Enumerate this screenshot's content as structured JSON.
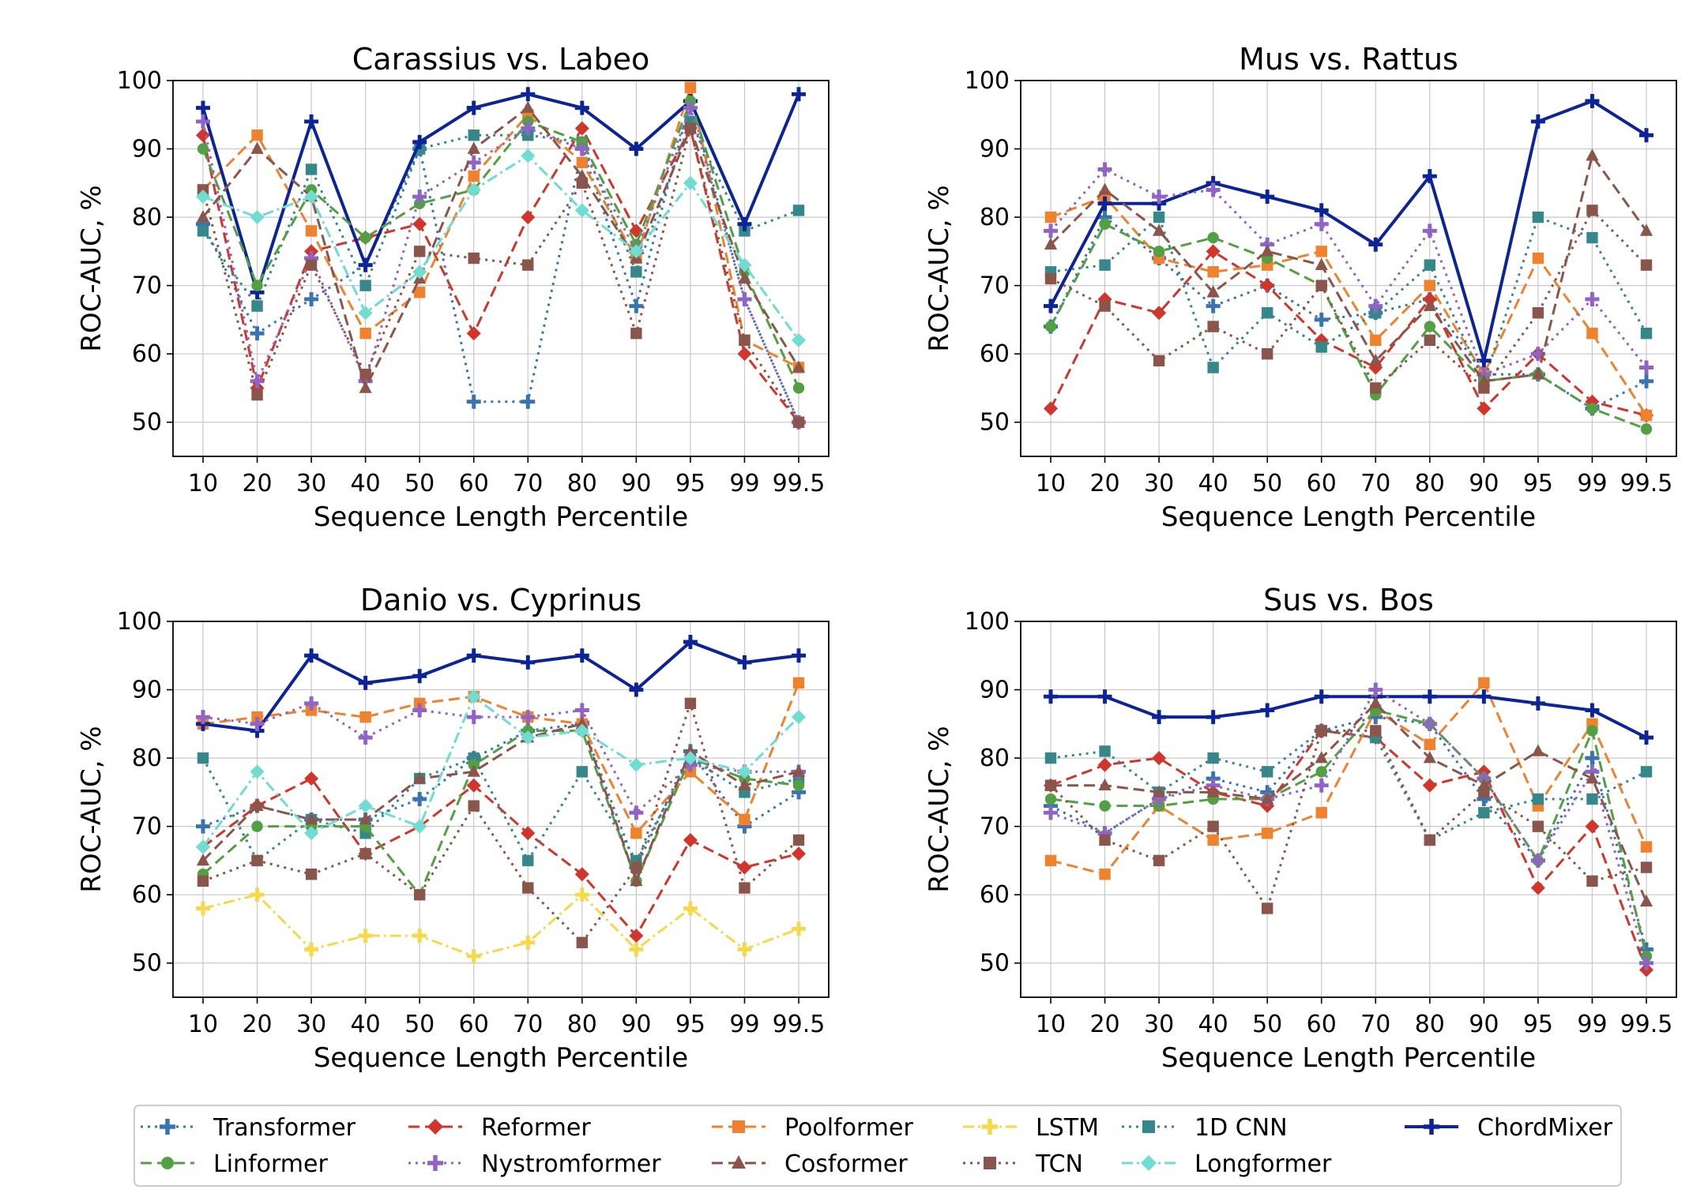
{
  "figure": {
    "legend": [
      {
        "key": "transformer",
        "label": "Transformer"
      },
      {
        "key": "reformer",
        "label": "Reformer"
      },
      {
        "key": "poolformer",
        "label": "Poolformer"
      },
      {
        "key": "lstm",
        "label": "LSTM"
      },
      {
        "key": "cnn",
        "label": "1D CNN"
      },
      {
        "key": "chordmixer",
        "label": "ChordMixer"
      },
      {
        "key": "linformer",
        "label": "Linformer"
      },
      {
        "key": "nystromformer",
        "label": "Nystromformer"
      },
      {
        "key": "cosformer",
        "label": "Cosformer"
      },
      {
        "key": "tcn",
        "label": "TCN"
      },
      {
        "key": "longformer",
        "label": "Longformer"
      }
    ],
    "styles": {
      "transformer": {
        "color": "#3a74b0",
        "dash": "dotted",
        "marker": "plus"
      },
      "reformer": {
        "color": "#d1352b",
        "dash": "dashed",
        "marker": "diamond"
      },
      "poolformer": {
        "color": "#f0822d",
        "dash": "dashed",
        "marker": "square"
      },
      "lstm": {
        "color": "#f5d94a",
        "dash": "dashdot",
        "marker": "plus"
      },
      "cnn": {
        "color": "#358789",
        "dash": "dotted",
        "marker": "square"
      },
      "chordmixer": {
        "color": "#0c2497",
        "dash": "solid",
        "marker": "plus"
      },
      "linformer": {
        "color": "#52a043",
        "dash": "dashed",
        "marker": "circle"
      },
      "nystromformer": {
        "color": "#9063c6",
        "dash": "dotted",
        "marker": "plus"
      },
      "cosformer": {
        "color": "#8a564b",
        "dash": "dashed",
        "marker": "triangle"
      },
      "tcn": {
        "color": "#8a564b",
        "dash": "dotted",
        "marker": "square"
      },
      "longformer": {
        "color": "#6fddd2",
        "dash": "dashdot",
        "marker": "diamond"
      }
    }
  },
  "chart_data": [
    {
      "type": "line",
      "title": "Carassius vs. Labeo",
      "xlabel": "Sequence Length Percentile",
      "ylabel": "ROC-AUC, %",
      "categories": [
        "10",
        "20",
        "30",
        "40",
        "50",
        "60",
        "70",
        "80",
        "90",
        "95",
        "99",
        "99.5"
      ],
      "ylim": [
        45,
        100
      ],
      "yticks": [
        50,
        60,
        70,
        80,
        90,
        100
      ],
      "grid": true,
      "series": [
        {
          "key": "transformer",
          "values": [
            79,
            63,
            68,
            73,
            90,
            53,
            53,
            90,
            67,
            97,
            68,
            50
          ]
        },
        {
          "key": "reformer",
          "values": [
            92,
            55,
            75,
            77,
            79,
            63,
            80,
            93,
            78,
            93,
            60,
            50
          ]
        },
        {
          "key": "poolformer",
          "values": [
            84,
            92,
            78,
            63,
            69,
            86,
            95,
            88,
            74,
            99,
            62,
            58
          ]
        },
        {
          "key": "cnn",
          "values": [
            78,
            67,
            87,
            70,
            90,
            92,
            92,
            91,
            72,
            94,
            78,
            81
          ]
        },
        {
          "key": "chordmixer",
          "values": [
            96,
            69,
            94,
            73,
            91,
            96,
            98,
            96,
            90,
            97,
            79,
            98
          ]
        },
        {
          "key": "linformer",
          "values": [
            90,
            70,
            84,
            77,
            82,
            84,
            94,
            91,
            76,
            97,
            72,
            55
          ]
        },
        {
          "key": "nystromformer",
          "values": [
            94,
            56,
            74,
            56,
            83,
            88,
            93,
            90,
            75,
            96,
            68,
            50
          ]
        },
        {
          "key": "cosformer",
          "values": [
            80,
            90,
            83,
            55,
            71,
            90,
            96,
            86,
            74,
            93,
            71,
            58
          ]
        },
        {
          "key": "tcn",
          "values": [
            84,
            54,
            73,
            57,
            75,
            74,
            73,
            85,
            63,
            93,
            62,
            50
          ]
        },
        {
          "key": "longformer",
          "values": [
            83,
            80,
            83,
            66,
            72,
            84,
            89,
            81,
            75,
            85,
            73,
            62
          ]
        }
      ]
    },
    {
      "type": "line",
      "title": "Mus vs. Rattus",
      "xlabel": "Sequence Length Percentile",
      "ylabel": "ROC-AUC, %",
      "categories": [
        "10",
        "20",
        "30",
        "40",
        "50",
        "60",
        "70",
        "80",
        "90",
        "95",
        "99",
        "99.5"
      ],
      "ylim": [
        45,
        100
      ],
      "yticks": [
        50,
        60,
        70,
        80,
        90,
        100
      ],
      "grid": true,
      "series": [
        {
          "key": "transformer",
          "values": [
            64,
            80,
            74,
            67,
            70,
            65,
            66,
            68,
            57,
            57,
            52,
            56
          ]
        },
        {
          "key": "reformer",
          "values": [
            52,
            68,
            66,
            75,
            70,
            62,
            58,
            68,
            52,
            60,
            53,
            51
          ]
        },
        {
          "key": "poolformer",
          "values": [
            80,
            83,
            74,
            72,
            73,
            75,
            62,
            70,
            57,
            74,
            63,
            51
          ]
        },
        {
          "key": "cnn",
          "values": [
            72,
            73,
            80,
            58,
            66,
            61,
            66,
            73,
            56,
            80,
            77,
            63
          ]
        },
        {
          "key": "chordmixer",
          "values": [
            67,
            82,
            82,
            85,
            83,
            81,
            76,
            86,
            59,
            94,
            97,
            92
          ]
        },
        {
          "key": "linformer",
          "values": [
            64,
            79,
            75,
            77,
            74,
            70,
            54,
            64,
            56,
            57,
            52,
            49
          ]
        },
        {
          "key": "nystromformer",
          "values": [
            78,
            87,
            83,
            84,
            76,
            79,
            67,
            78,
            57,
            60,
            68,
            58
          ]
        },
        {
          "key": "cosformer",
          "values": [
            76,
            84,
            78,
            69,
            75,
            73,
            59,
            67,
            56,
            57,
            89,
            78
          ]
        },
        {
          "key": "tcn",
          "values": [
            71,
            67,
            59,
            64,
            60,
            70,
            55,
            62,
            55,
            66,
            81,
            73
          ]
        }
      ]
    },
    {
      "type": "line",
      "title": "Danio vs. Cyprinus",
      "xlabel": "Sequence Length Percentile",
      "ylabel": "ROC-AUC, %",
      "categories": [
        "10",
        "20",
        "30",
        "40",
        "50",
        "60",
        "70",
        "80",
        "90",
        "95",
        "99",
        "99.5"
      ],
      "ylim": [
        45,
        100
      ],
      "yticks": [
        50,
        60,
        70,
        80,
        90,
        100
      ],
      "grid": true,
      "series": [
        {
          "key": "transformer",
          "values": [
            70,
            73,
            71,
            71,
            74,
            80,
            84,
            85,
            64,
            81,
            70,
            75
          ]
        },
        {
          "key": "reformer",
          "values": [
            67,
            73,
            77,
            66,
            70,
            76,
            69,
            63,
            54,
            68,
            64,
            66
          ]
        },
        {
          "key": "poolformer",
          "values": [
            85,
            86,
            87,
            86,
            88,
            89,
            86,
            85,
            69,
            78,
            71,
            91
          ]
        },
        {
          "key": "lstm",
          "values": [
            58,
            60,
            52,
            54,
            54,
            51,
            53,
            60,
            52,
            58,
            52,
            55
          ]
        },
        {
          "key": "cnn",
          "values": [
            80,
            65,
            71,
            69,
            77,
            80,
            65,
            78,
            65,
            80,
            75,
            77
          ]
        },
        {
          "key": "chordmixer",
          "values": [
            85,
            84,
            95,
            91,
            92,
            95,
            94,
            95,
            90,
            97,
            94,
            95
          ]
        },
        {
          "key": "linformer",
          "values": [
            63,
            70,
            70,
            70,
            60,
            79,
            84,
            84,
            62,
            80,
            77,
            76
          ]
        },
        {
          "key": "nystromformer",
          "values": [
            86,
            85,
            88,
            83,
            87,
            86,
            86,
            87,
            72,
            79,
            78,
            78
          ]
        },
        {
          "key": "cosformer",
          "values": [
            65,
            73,
            71,
            71,
            77,
            78,
            83,
            85,
            62,
            81,
            76,
            78
          ]
        },
        {
          "key": "tcn",
          "values": [
            62,
            65,
            63,
            66,
            60,
            73,
            61,
            53,
            64,
            88,
            61,
            68
          ]
        },
        {
          "key": "longformer",
          "values": [
            67,
            78,
            69,
            73,
            70,
            89,
            83,
            84,
            79,
            80,
            78,
            86
          ]
        }
      ]
    },
    {
      "type": "line",
      "title": "Sus vs. Bos",
      "xlabel": "Sequence Length Percentile",
      "ylabel": "ROC-AUC, %",
      "categories": [
        "10",
        "20",
        "30",
        "40",
        "50",
        "60",
        "70",
        "80",
        "90",
        "95",
        "99",
        "99.5"
      ],
      "ylim": [
        45,
        100
      ],
      "yticks": [
        50,
        60,
        70,
        80,
        90,
        100
      ],
      "grid": true,
      "series": [
        {
          "key": "transformer",
          "values": [
            73,
            69,
            74,
            77,
            75,
            84,
            86,
            85,
            74,
            65,
            80,
            52
          ]
        },
        {
          "key": "reformer",
          "values": [
            76,
            79,
            80,
            75,
            73,
            84,
            83,
            76,
            78,
            61,
            70,
            49
          ]
        },
        {
          "key": "poolformer",
          "values": [
            65,
            63,
            73,
            68,
            69,
            72,
            87,
            82,
            91,
            73,
            85,
            67
          ]
        },
        {
          "key": "cnn",
          "values": [
            80,
            81,
            75,
            80,
            78,
            84,
            83,
            68,
            72,
            74,
            74,
            78
          ]
        },
        {
          "key": "chordmixer",
          "values": [
            89,
            89,
            86,
            86,
            87,
            89,
            89,
            89,
            89,
            88,
            87,
            83
          ]
        },
        {
          "key": "linformer",
          "values": [
            74,
            73,
            73,
            74,
            74,
            78,
            87,
            85,
            77,
            65,
            84,
            51
          ]
        },
        {
          "key": "nystromformer",
          "values": [
            72,
            69,
            74,
            76,
            74,
            76,
            90,
            85,
            77,
            65,
            78,
            50
          ]
        },
        {
          "key": "cosformer",
          "values": [
            76,
            76,
            75,
            75,
            74,
            80,
            88,
            80,
            76,
            81,
            77,
            59
          ]
        },
        {
          "key": "tcn",
          "values": [
            76,
            68,
            65,
            70,
            58,
            84,
            84,
            68,
            75,
            70,
            62,
            64
          ]
        }
      ]
    }
  ]
}
